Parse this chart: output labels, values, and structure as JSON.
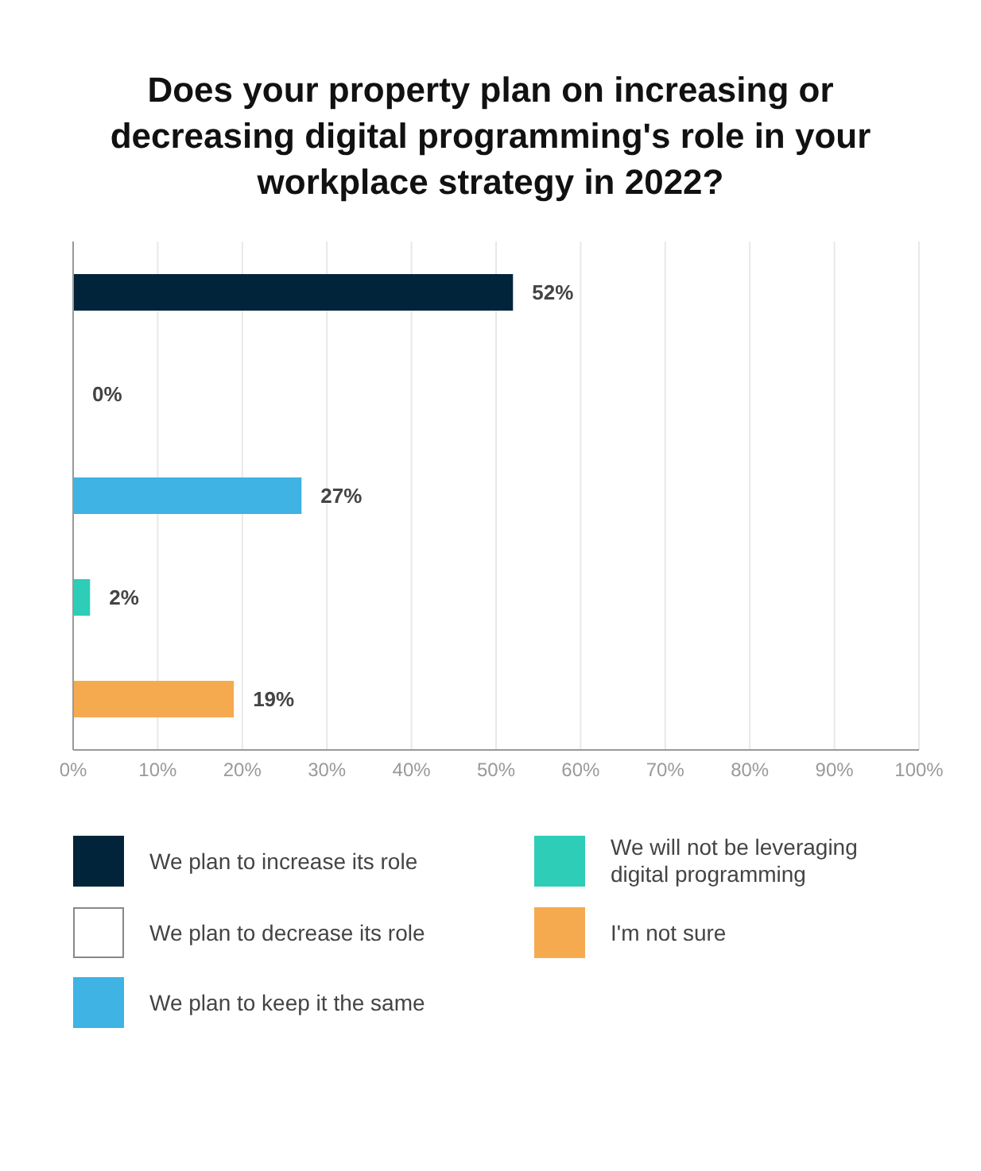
{
  "chart_data": {
    "type": "bar",
    "orientation": "horizontal",
    "stacked": true,
    "title": "Does your property plan on increasing or decreasing digital programming's role in your workplace strategy in 2022?",
    "categories": [
      null,
      null,
      null,
      null,
      null
    ],
    "series": [
      {
        "name": "We plan to increase its role",
        "color": "#02243b",
        "values": [
          52,
          null,
          null,
          null,
          null
        ],
        "value_labels": [
          "52%",
          null,
          null,
          null,
          null
        ]
      },
      {
        "name": "We plan to decrease its role",
        "color": "#ffffff",
        "values": [
          null,
          0,
          null,
          null,
          null
        ],
        "value_labels": [
          null,
          "0%",
          null,
          null,
          null
        ]
      },
      {
        "name": "We plan to keep it the same",
        "color": "#3eb3e4",
        "values": [
          null,
          null,
          27,
          null,
          null
        ],
        "value_labels": [
          null,
          null,
          "27%",
          null,
          null
        ]
      },
      {
        "name": "We will not be leveraging digital programming",
        "color": "#2ecdb8",
        "values": [
          null,
          null,
          null,
          2,
          null
        ],
        "value_labels": [
          null,
          null,
          null,
          "2%",
          null
        ]
      },
      {
        "name": "I'm not sure",
        "color": "#f6aa50",
        "values": [
          null,
          null,
          null,
          null,
          19
        ],
        "value_labels": [
          null,
          null,
          null,
          null,
          "19%"
        ]
      }
    ],
    "xlim": [
      0,
      100
    ],
    "xticks": [
      {
        "value": 0,
        "label": "0%"
      },
      {
        "value": 10,
        "label": "10%"
      },
      {
        "value": 20,
        "label": "20%"
      },
      {
        "value": 30,
        "label": "30%"
      },
      {
        "value": 40,
        "label": "40%"
      },
      {
        "value": 50,
        "label": "50%"
      },
      {
        "value": 60,
        "label": "60%"
      },
      {
        "value": 70,
        "label": "70%"
      },
      {
        "value": 80,
        "label": "80%"
      },
      {
        "value": 90,
        "label": "90%"
      },
      {
        "value": 100,
        "label": "100%"
      }
    ],
    "grid": "x",
    "legend": "bottom",
    "tick_labels": "x"
  }
}
